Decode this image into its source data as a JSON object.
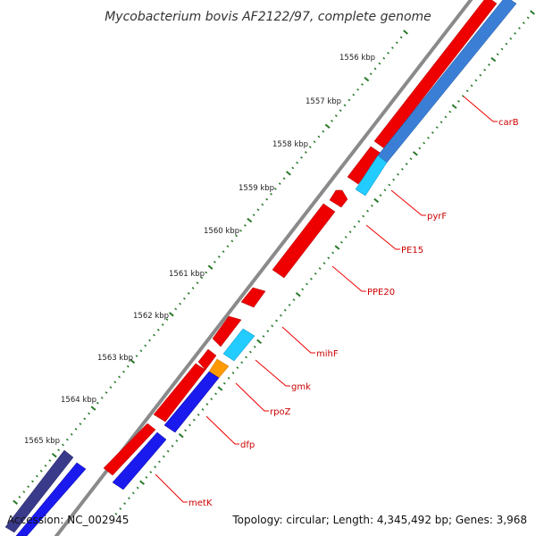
{
  "map": {
    "title": "Mycobacterium bovis AF2122/97, complete genome",
    "accession": "Accession: NC_002945",
    "summary": "Topology: circular; Length: 4,345,492 bp; Genes: 3,968",
    "colors": {
      "backbone": "#8a8a8a",
      "forward_cds": "#ee0000",
      "reverse_cds": "#1a1aee",
      "light_blue_cds": "#22ccff",
      "steel_blue_cds": "#3a7fd5",
      "orange_cds": "#ff9900",
      "navy_cds": "#3a3a8a",
      "ticks": "#2a7a2a",
      "label_lines": "#ee0000"
    },
    "ticks": [
      {
        "label": "1556 kbp"
      },
      {
        "label": "1557 kbp"
      },
      {
        "label": "1558 kbp"
      },
      {
        "label": "1559 kbp"
      },
      {
        "label": "1560 kbp"
      },
      {
        "label": "1561 kbp"
      },
      {
        "label": "1562 kbp"
      },
      {
        "label": "1563 kbp"
      },
      {
        "label": "1564 kbp"
      },
      {
        "label": "1565 kbp"
      }
    ],
    "genes": [
      {
        "name": "carB",
        "color": "#3a7fd5"
      },
      {
        "name": "pyrF",
        "color": "#22ccff"
      },
      {
        "name": "PE15",
        "color": "#ee0000"
      },
      {
        "name": "PPE20",
        "color": "#ee0000"
      },
      {
        "name": "mihF",
        "color": "#ee0000"
      },
      {
        "name": "gmk",
        "color": "#22ccff"
      },
      {
        "name": "rpoZ",
        "color": "#ff9900"
      },
      {
        "name": "dfp",
        "color": "#1a1aee"
      },
      {
        "name": "metK",
        "color": "#1a1aee"
      }
    ]
  }
}
